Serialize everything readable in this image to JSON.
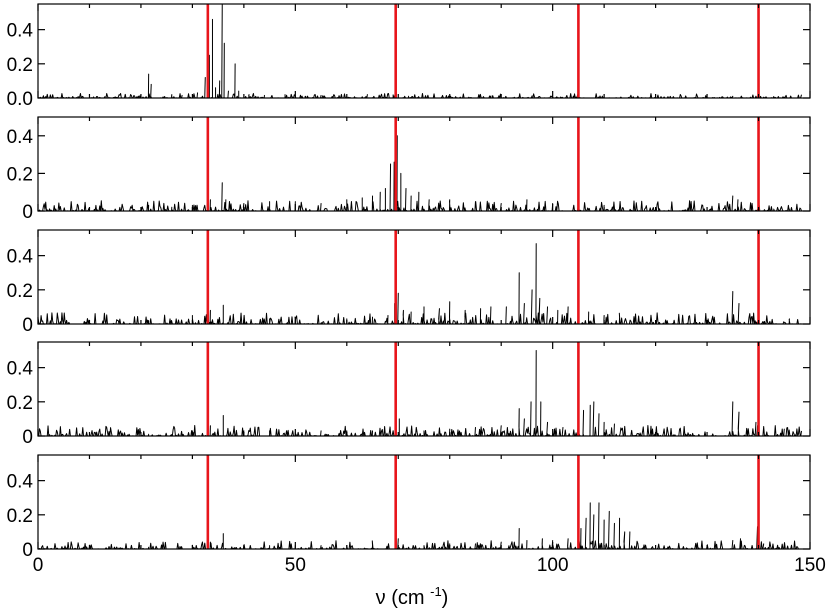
{
  "colors": {
    "background": "#ffffff",
    "trace": "#000000",
    "marker_line": "#e8151b",
    "frame": "#000000"
  },
  "chart_data": [
    {
      "type": "line",
      "panel": 1,
      "xlim": [
        0,
        150
      ],
      "ylim": [
        0,
        0.55
      ],
      "yticks": [
        0.0,
        0.2,
        0.4
      ],
      "yticklabels": [
        "0.0",
        "0.2",
        "0.4"
      ],
      "vlines": [
        33,
        69.5,
        105,
        140
      ],
      "series": [
        {
          "peaks": [
            [
              0.5,
              0.004
            ],
            [
              5,
              0.002
            ],
            [
              13,
              0.008
            ],
            [
              21.5,
              0.14
            ],
            [
              22,
              0.08
            ],
            [
              26,
              0.02
            ],
            [
              28,
              0.015
            ],
            [
              31,
              0.03
            ],
            [
              32.5,
              0.12
            ],
            [
              33.3,
              0.25
            ],
            [
              33.9,
              0.46
            ],
            [
              34.5,
              0.06
            ],
            [
              35.3,
              0.1
            ],
            [
              35.8,
              0.55
            ],
            [
              36.2,
              0.32
            ],
            [
              37,
              0.04
            ],
            [
              38.3,
              0.2
            ],
            [
              39,
              0.04
            ],
            [
              41,
              0.02
            ],
            [
              44,
              0.015
            ],
            [
              48,
              0.02
            ],
            [
              52,
              0.01
            ],
            [
              55,
              0.015
            ],
            [
              60,
              0.01
            ],
            [
              64,
              0.02
            ],
            [
              69,
              0.015
            ],
            [
              72,
              0.01
            ],
            [
              80,
              0.01
            ],
            [
              88,
              0.012
            ],
            [
              96,
              0.012
            ],
            [
              104,
              0.01
            ],
            [
              110,
              0.005
            ],
            [
              120,
              0.005
            ],
            [
              135,
              0.01
            ],
            [
              145,
              0.005
            ]
          ],
          "noise": 0.012
        }
      ]
    },
    {
      "type": "line",
      "panel": 2,
      "xlim": [
        0,
        150
      ],
      "ylim": [
        0,
        0.5
      ],
      "yticks": [
        0,
        0.2,
        0.4
      ],
      "yticklabels": [
        "0",
        "0.2",
        "0.4"
      ],
      "vlines": [
        33,
        69.5,
        105,
        140
      ],
      "series": [
        {
          "peaks": [
            [
              13,
              0.005
            ],
            [
              21.5,
              0.03
            ],
            [
              26,
              0.02
            ],
            [
              30,
              0.03
            ],
            [
              33.5,
              0.06
            ],
            [
              35.8,
              0.15
            ],
            [
              36.5,
              0.06
            ],
            [
              40,
              0.04
            ],
            [
              45,
              0.05
            ],
            [
              50,
              0.05
            ],
            [
              55,
              0.04
            ],
            [
              60,
              0.06
            ],
            [
              63,
              0.07
            ],
            [
              65,
              0.08
            ],
            [
              66.5,
              0.1
            ],
            [
              67.5,
              0.12
            ],
            [
              68.5,
              0.25
            ],
            [
              69.2,
              0.26
            ],
            [
              69.8,
              0.4
            ],
            [
              70.5,
              0.2
            ],
            [
              71.5,
              0.12
            ],
            [
              72.5,
              0.08
            ],
            [
              74,
              0.1
            ],
            [
              76,
              0.06
            ],
            [
              80,
              0.06
            ],
            [
              85,
              0.05
            ],
            [
              90,
              0.04
            ],
            [
              95,
              0.06
            ],
            [
              100,
              0.04
            ],
            [
              105,
              0.03
            ],
            [
              110,
              0.03
            ],
            [
              113,
              0.02
            ],
            [
              135,
              0.08
            ],
            [
              136,
              0.06
            ],
            [
              143,
              0.005
            ],
            [
              146,
              0.01
            ]
          ],
          "noise": 0.025
        }
      ]
    },
    {
      "type": "line",
      "panel": 3,
      "xlim": [
        0,
        150
      ],
      "ylim": [
        0,
        0.55
      ],
      "yticks": [
        0,
        0.2,
        0.4
      ],
      "yticklabels": [
        "0",
        "0.2",
        "0.4"
      ],
      "vlines": [
        33,
        69.5,
        105,
        140
      ],
      "series": [
        {
          "peaks": [
            [
              21.5,
              0.02
            ],
            [
              30,
              0.05
            ],
            [
              33.5,
              0.08
            ],
            [
              36,
              0.11
            ],
            [
              40,
              0.03
            ],
            [
              45,
              0.03
            ],
            [
              50,
              0.03
            ],
            [
              60,
              0.03
            ],
            [
              65,
              0.04
            ],
            [
              68,
              0.05
            ],
            [
              69.3,
              0.12
            ],
            [
              70,
              0.18
            ],
            [
              71,
              0.08
            ],
            [
              72.5,
              0.07
            ],
            [
              75,
              0.1
            ],
            [
              78,
              0.09
            ],
            [
              80,
              0.13
            ],
            [
              83,
              0.08
            ],
            [
              86,
              0.09
            ],
            [
              88,
              0.1
            ],
            [
              91,
              0.1
            ],
            [
              93.5,
              0.3
            ],
            [
              94.5,
              0.12
            ],
            [
              96,
              0.2
            ],
            [
              96.8,
              0.47
            ],
            [
              97.5,
              0.15
            ],
            [
              99,
              0.1
            ],
            [
              101,
              0.08
            ],
            [
              103,
              0.1
            ],
            [
              105,
              0.06
            ],
            [
              107,
              0.07
            ],
            [
              110,
              0.05
            ],
            [
              113,
              0.04
            ],
            [
              135,
              0.19
            ],
            [
              136.2,
              0.12
            ],
            [
              140,
              0.02
            ],
            [
              146,
              0.03
            ],
            [
              149,
              0.02
            ]
          ],
          "noise": 0.03
        }
      ]
    },
    {
      "type": "line",
      "panel": 4,
      "xlim": [
        0,
        150
      ],
      "ylim": [
        0,
        0.55
      ],
      "yticks": [
        0,
        0.2,
        0.4
      ],
      "yticklabels": [
        "0",
        "0.2",
        "0.4"
      ],
      "vlines": [
        33,
        69.5,
        105,
        140
      ],
      "series": [
        {
          "peaks": [
            [
              21.5,
              0.01
            ],
            [
              30,
              0.03
            ],
            [
              33.5,
              0.06
            ],
            [
              36,
              0.12
            ],
            [
              40,
              0.03
            ],
            [
              45,
              0.03
            ],
            [
              50,
              0.02
            ],
            [
              55,
              0.03
            ],
            [
              60,
              0.03
            ],
            [
              65,
              0.03
            ],
            [
              69.5,
              0.09
            ],
            [
              70.2,
              0.1
            ],
            [
              75,
              0.03
            ],
            [
              80,
              0.04
            ],
            [
              85,
              0.05
            ],
            [
              90,
              0.06
            ],
            [
              93.5,
              0.16
            ],
            [
              94.5,
              0.1
            ],
            [
              95.8,
              0.2
            ],
            [
              96.8,
              0.5
            ],
            [
              97.7,
              0.2
            ],
            [
              99,
              0.08
            ],
            [
              102,
              0.05
            ],
            [
              105,
              0.1
            ],
            [
              106,
              0.15
            ],
            [
              107.3,
              0.18
            ],
            [
              108,
              0.2
            ],
            [
              109,
              0.13
            ],
            [
              110,
              0.08
            ],
            [
              112,
              0.07
            ],
            [
              114,
              0.04
            ],
            [
              135,
              0.2
            ],
            [
              136.2,
              0.14
            ],
            [
              139.5,
              0.08
            ],
            [
              145,
              0.04
            ],
            [
              149,
              0.03
            ]
          ],
          "noise": 0.028
        }
      ]
    },
    {
      "type": "line",
      "panel": 5,
      "xlim": [
        0,
        150
      ],
      "ylim": [
        0,
        0.55
      ],
      "yticks": [
        0,
        0.2,
        0.4
      ],
      "yticklabels": [
        "0",
        "0.2",
        "0.4"
      ],
      "vlines": [
        33,
        69.5,
        105,
        140
      ],
      "xticks": [
        0,
        50,
        100,
        150
      ],
      "xticklabels": [
        "0",
        "50",
        "100",
        "150"
      ],
      "xlabel": "ν (cm-1)",
      "series": [
        {
          "peaks": [
            [
              21.5,
              0.01
            ],
            [
              30,
              0.02
            ],
            [
              33.5,
              0.04
            ],
            [
              36,
              0.09
            ],
            [
              40,
              0.02
            ],
            [
              45,
              0.02
            ],
            [
              50,
              0.02
            ],
            [
              55,
              0.02
            ],
            [
              60,
              0.02
            ],
            [
              65,
              0.02
            ],
            [
              69.5,
              0.08
            ],
            [
              70,
              0.06
            ],
            [
              75,
              0.02
            ],
            [
              80,
              0.03
            ],
            [
              85,
              0.03
            ],
            [
              90,
              0.04
            ],
            [
              93.5,
              0.12
            ],
            [
              95,
              0.05
            ],
            [
              98,
              0.06
            ],
            [
              100,
              0.05
            ],
            [
              103,
              0.06
            ],
            [
              105.5,
              0.12
            ],
            [
              106.5,
              0.18
            ],
            [
              107.3,
              0.27
            ],
            [
              108,
              0.2
            ],
            [
              109,
              0.27
            ],
            [
              110,
              0.17
            ],
            [
              111,
              0.22
            ],
            [
              112,
              0.15
            ],
            [
              113,
              0.18
            ],
            [
              114,
              0.1
            ],
            [
              115,
              0.1
            ],
            [
              135,
              0.05
            ],
            [
              136.5,
              0.06
            ],
            [
              139.8,
              0.13
            ],
            [
              141,
              0.03
            ],
            [
              145,
              0.01
            ],
            [
              149,
              0.03
            ]
          ],
          "noise": 0.022
        }
      ]
    }
  ]
}
